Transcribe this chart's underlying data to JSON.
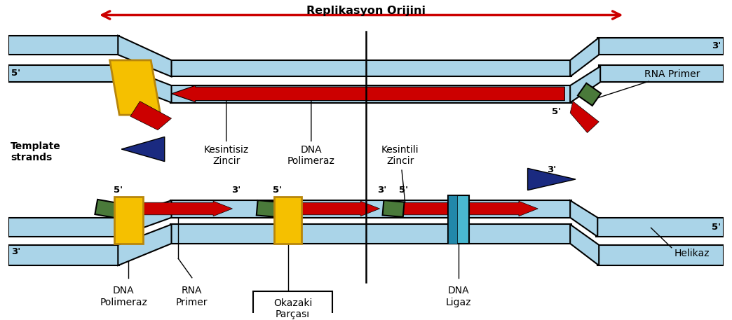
{
  "bg": "#ffffff",
  "sky_blue": "#aad4e8",
  "red": "#cc0000",
  "yellow": "#f5c000",
  "dark_yellow": "#b8860b",
  "green": "#4a7a3a",
  "navy": "#1a2a80",
  "teal_blue": "#4ab8d0",
  "dark_teal": "#2288aa",
  "label_replikasyon": "Replikasyon Orijini",
  "label_template": "Template\nstrands",
  "label_kesintisiz": "Kesintisiz\nZincir",
  "label_dna_pol_center": "DNA\nPolimeraz",
  "label_kesintili": "Kesintili\nZincir",
  "label_rna_right": "RNA Primer",
  "label_dna_pol_left": "DNA\nPolimeraz",
  "label_rna_left": "RNA\nPrimer",
  "label_okazaki": "Okazaki\nParçası",
  "label_ligaz": "DNA\nLigaz",
  "label_helikaz": "Helikaz"
}
